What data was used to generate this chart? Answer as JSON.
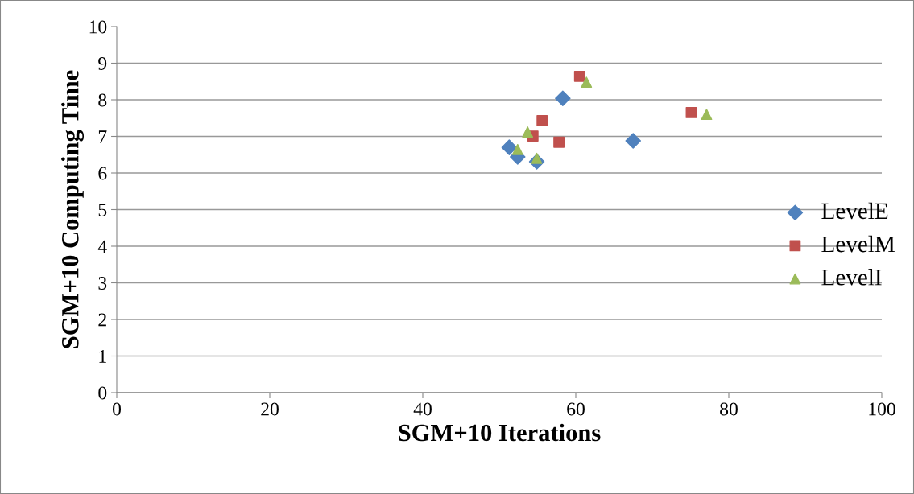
{
  "chart_data": {
    "type": "scatter",
    "xlabel": "SGM+10 Iterations",
    "ylabel": "SGM+10 Computing Time",
    "xlim": [
      0,
      100
    ],
    "xticks": [
      0,
      20,
      40,
      60,
      80,
      100
    ],
    "ylim": [
      0,
      10
    ],
    "yticks": [
      0,
      1,
      2,
      3,
      4,
      5,
      6,
      7,
      8,
      9,
      10
    ],
    "grid": "y",
    "legend": "right",
    "series": [
      {
        "name": "LevelE",
        "color": "#4f81bd",
        "marker": "diamond",
        "x": [
          51.3,
          52.4,
          54.9,
          58.3,
          67.5
        ],
        "values": [
          6.7,
          6.44,
          6.31,
          8.04,
          6.88
        ]
      },
      {
        "name": "LevelM",
        "color": "#c0504d",
        "marker": "square",
        "x": [
          60.5,
          55.6,
          54.4,
          57.8,
          75.1
        ],
        "values": [
          8.64,
          7.43,
          7.01,
          6.84,
          7.65
        ]
      },
      {
        "name": "LevelI",
        "color": "#9bbb59",
        "marker": "triangle",
        "x": [
          61.4,
          53.7,
          52.4,
          54.9,
          77.1
        ],
        "values": [
          8.48,
          7.12,
          6.64,
          6.4,
          7.6
        ]
      }
    ]
  }
}
